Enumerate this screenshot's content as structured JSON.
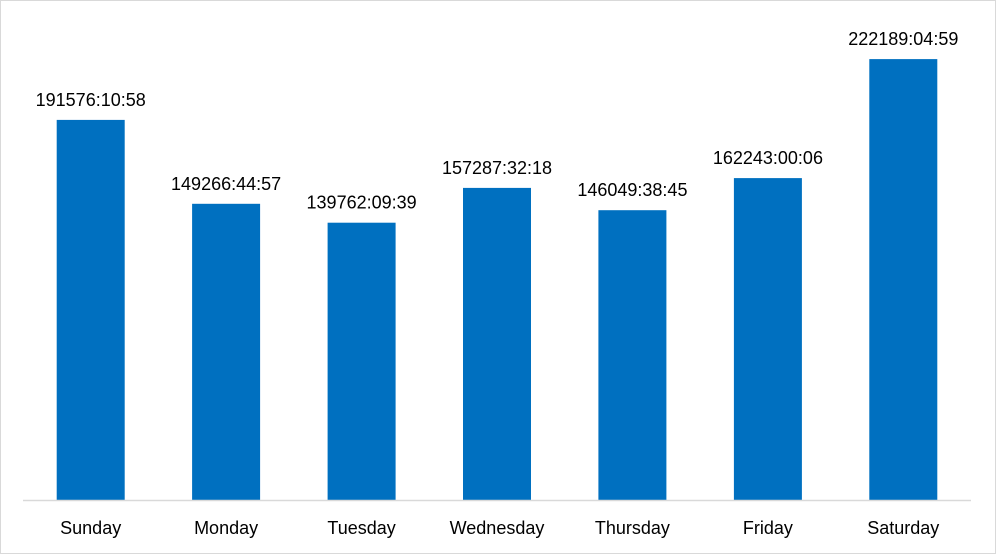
{
  "chart_data": {
    "type": "bar",
    "title": "",
    "xlabel": "",
    "ylabel": "",
    "categories": [
      "Sunday",
      "Monday",
      "Tuesday",
      "Wednesday",
      "Thursday",
      "Friday",
      "Saturday"
    ],
    "values": [
      191576.18,
      149266.75,
      139762.16,
      157287.54,
      146049.65,
      162243.0,
      222189.08
    ],
    "data_labels": [
      "191576:10:58",
      "149266:44:57",
      "139762:09:39",
      "157287:32:18",
      "146049:38:45",
      "162243:00:06",
      "222189:04:59"
    ],
    "ylim": [
      0,
      252000
    ],
    "value_unit": "hours",
    "grid": false,
    "legend": "none",
    "colors": {
      "bar": "#0070C0",
      "axis": "#d9d9d9"
    }
  }
}
